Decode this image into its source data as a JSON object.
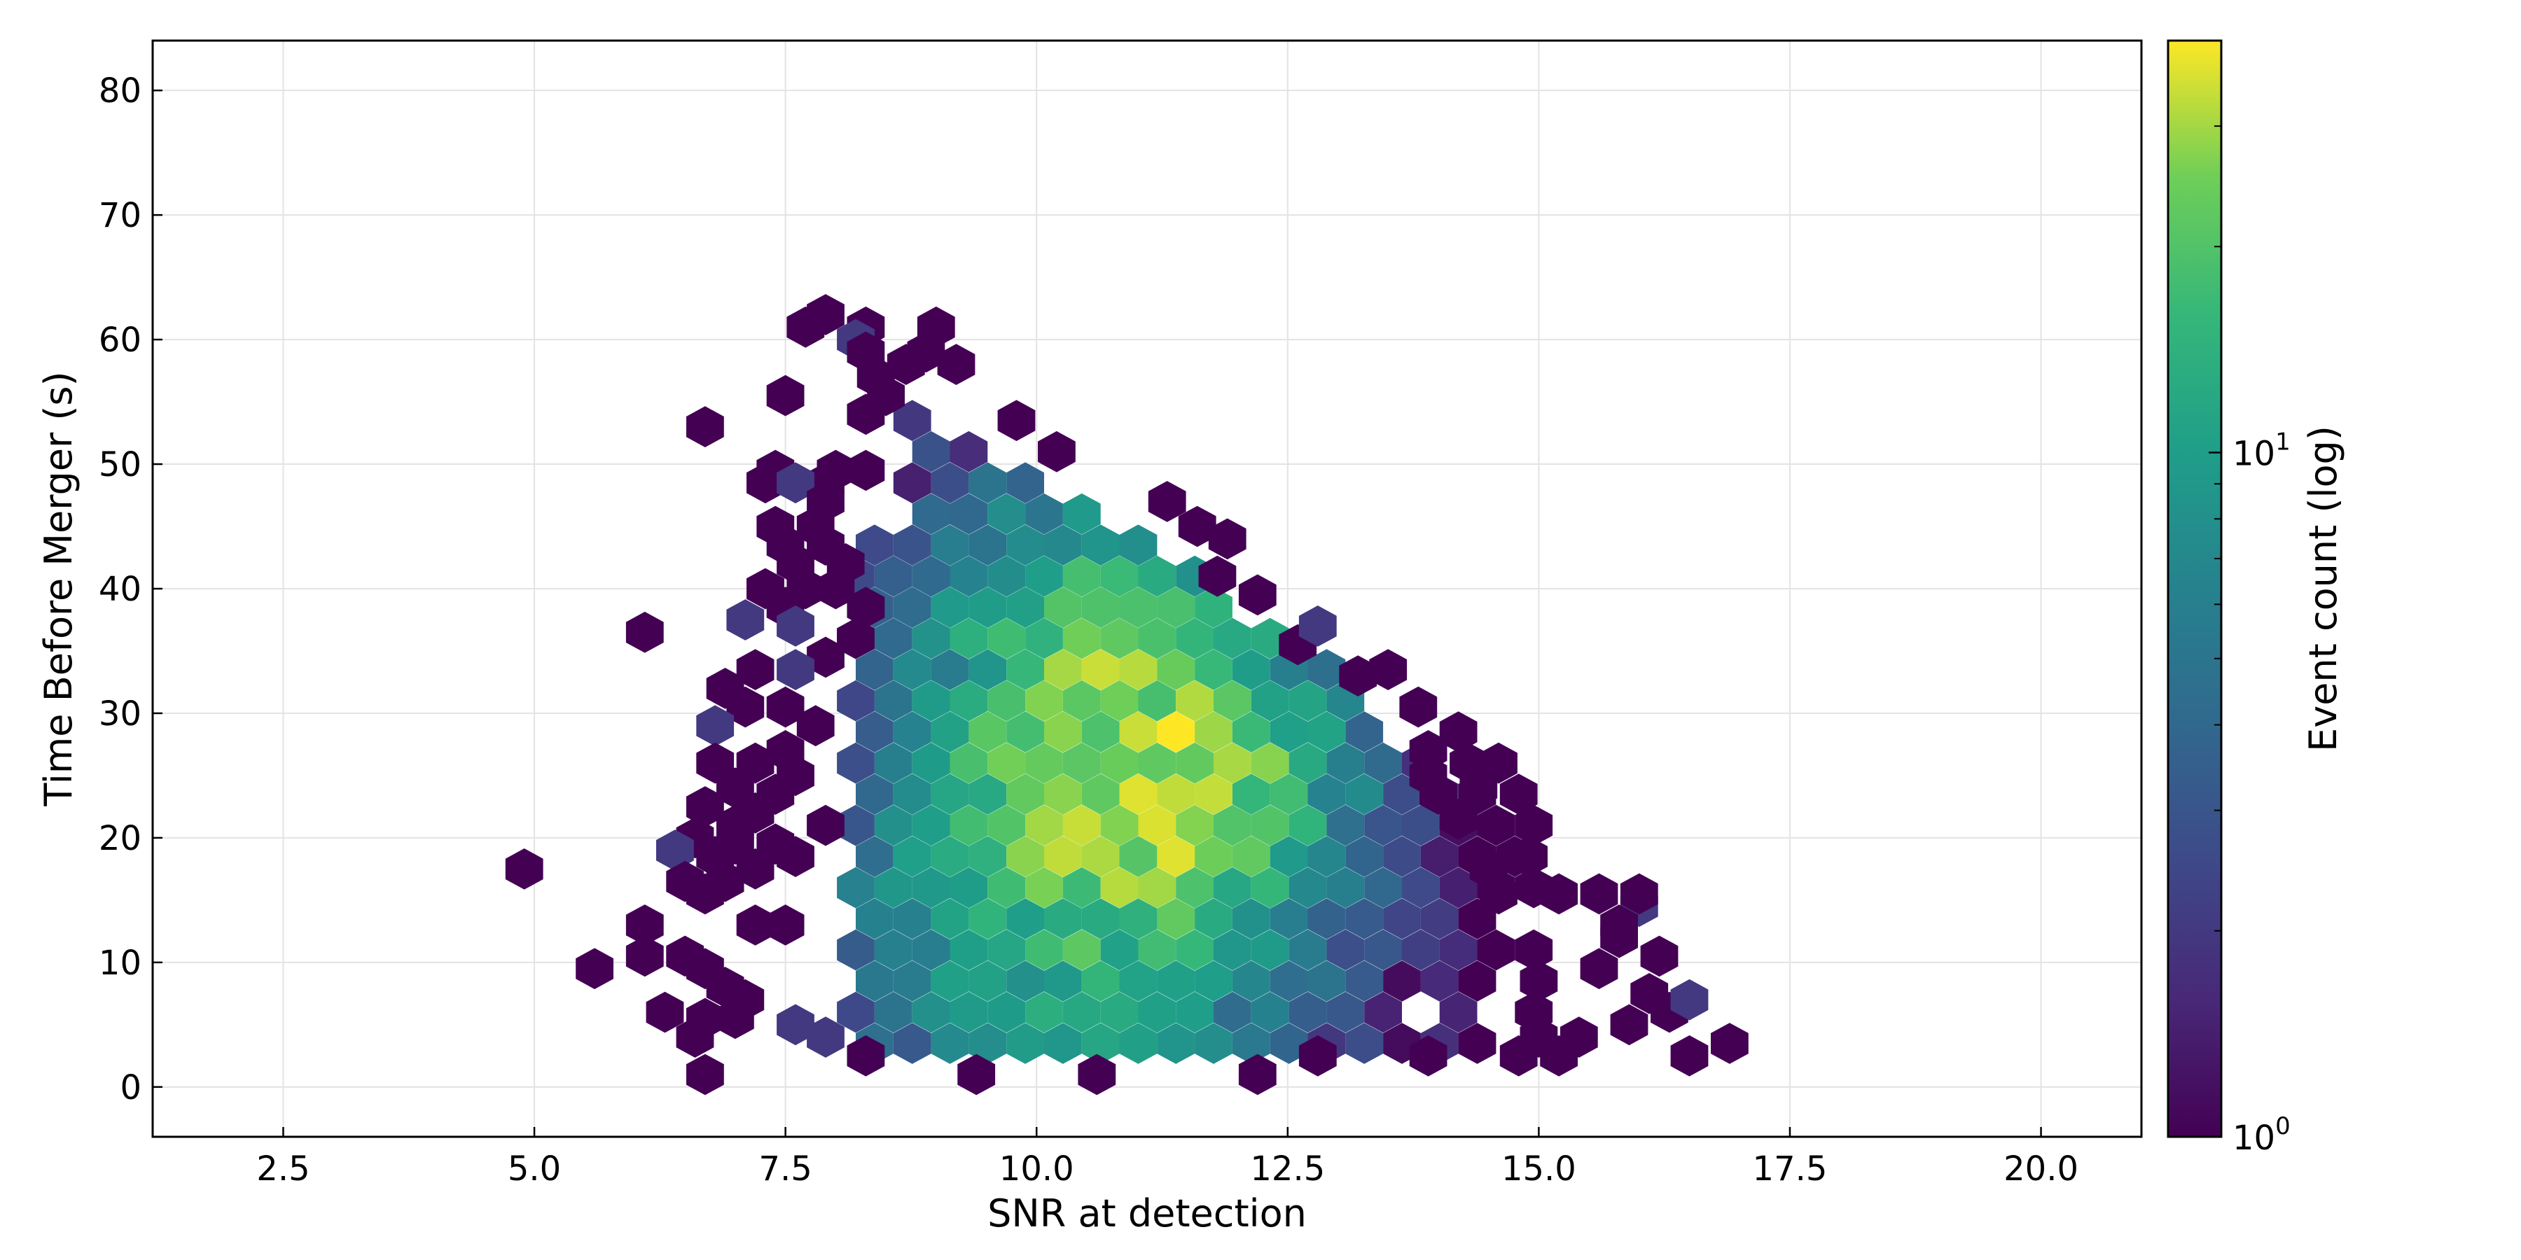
{
  "chart_data": {
    "type": "heatmap",
    "subtype": "hexbin",
    "title": "",
    "xlabel": "SNR at detection",
    "ylabel": "Time Before Merger (s)",
    "xlim": [
      1.2,
      21.0
    ],
    "ylim": [
      -4,
      84
    ],
    "xticks": [
      "2.5",
      "5.0",
      "7.5",
      "10.0",
      "12.5",
      "15.0",
      "17.5",
      "20.0"
    ],
    "yticks": [
      "0",
      "10",
      "20",
      "30",
      "40",
      "50",
      "60",
      "70",
      "80"
    ],
    "grid": true,
    "colorscale": "viridis",
    "log_color": true,
    "colorbar": {
      "label": "Event count (log)",
      "min": 1,
      "max": 40,
      "ticks": [
        {
          "value": 1,
          "base": "10",
          "exp": "0"
        },
        {
          "value": 10,
          "base": "10",
          "exp": "1"
        }
      ]
    },
    "density_model": {
      "description": "approximate event-count field; cells with zero count are blank",
      "peaks": [
        {
          "x": 10.8,
          "y": 29,
          "sx": 1.15,
          "sy": 11,
          "amp": 24
        },
        {
          "x": 11.6,
          "y": 24,
          "sx": 0.8,
          "sy": 5,
          "amp": 14
        },
        {
          "x": 10.3,
          "y": 12,
          "sx": 1.4,
          "sy": 9,
          "amp": 9
        }
      ],
      "upper_edge": {
        "x0": 8.3,
        "y0": 57,
        "x1": 14.1,
        "y1": 29
      }
    },
    "sparse_cells": [
      [
        7.9,
        62,
        1
      ],
      [
        7.7,
        61,
        1
      ],
      [
        8.3,
        61,
        1
      ],
      [
        9.0,
        61,
        1
      ],
      [
        8.2,
        60,
        2
      ],
      [
        8.9,
        59,
        1
      ],
      [
        8.3,
        59,
        1
      ],
      [
        8.7,
        58,
        1
      ],
      [
        9.2,
        58,
        1
      ],
      [
        8.4,
        57,
        1
      ],
      [
        7.5,
        55.5,
        1
      ],
      [
        8.5,
        55.5,
        1
      ],
      [
        6.7,
        53,
        1
      ],
      [
        8.3,
        54,
        1
      ],
      [
        7.4,
        49.5,
        1
      ],
      [
        7.3,
        48.5,
        1
      ],
      [
        8.0,
        49.5,
        1
      ],
      [
        8.3,
        49.5,
        1
      ],
      [
        7.9,
        48.5,
        1
      ],
      [
        7.6,
        48.5,
        2
      ],
      [
        7.9,
        47,
        1
      ],
      [
        7.4,
        45,
        1
      ],
      [
        7.8,
        45,
        1
      ],
      [
        7.5,
        43.5,
        1
      ],
      [
        7.9,
        43.5,
        1
      ],
      [
        7.6,
        42,
        1
      ],
      [
        8.1,
        42,
        1
      ],
      [
        7.3,
        40,
        1
      ],
      [
        7.7,
        40,
        1
      ],
      [
        8.0,
        40,
        1
      ],
      [
        7.5,
        38.5,
        1
      ],
      [
        8.3,
        38.5,
        1
      ],
      [
        7.1,
        37.5,
        2
      ],
      [
        7.6,
        37,
        2
      ],
      [
        6.1,
        36.5,
        1
      ],
      [
        8.2,
        36,
        1
      ],
      [
        7.9,
        34.5,
        1
      ],
      [
        7.2,
        33.5,
        1
      ],
      [
        7.6,
        33.5,
        2
      ],
      [
        6.9,
        32,
        1
      ],
      [
        7.1,
        30.5,
        1
      ],
      [
        7.5,
        30.5,
        1
      ],
      [
        6.8,
        29,
        2
      ],
      [
        7.8,
        29,
        1
      ],
      [
        7.5,
        27,
        1
      ],
      [
        6.8,
        26,
        1
      ],
      [
        7.2,
        26,
        1
      ],
      [
        7.6,
        25,
        1
      ],
      [
        7.0,
        24,
        1
      ],
      [
        7.4,
        23.5,
        1
      ],
      [
        6.7,
        22.5,
        1
      ],
      [
        7.2,
        22,
        1
      ],
      [
        7.0,
        21,
        1
      ],
      [
        7.9,
        21,
        1
      ],
      [
        6.6,
        20,
        1
      ],
      [
        7.0,
        19.5,
        1
      ],
      [
        7.4,
        19.5,
        1
      ],
      [
        6.4,
        19,
        2
      ],
      [
        6.8,
        18.5,
        1
      ],
      [
        7.6,
        18.5,
        1
      ],
      [
        4.9,
        17.5,
        1
      ],
      [
        7.2,
        17.5,
        1
      ],
      [
        6.5,
        16.5,
        1
      ],
      [
        6.9,
        16.5,
        1
      ],
      [
        6.7,
        15.5,
        1
      ],
      [
        6.1,
        13,
        1
      ],
      [
        7.2,
        13,
        1
      ],
      [
        7.5,
        13,
        1
      ],
      [
        6.1,
        10.5,
        1
      ],
      [
        6.5,
        10.5,
        1
      ],
      [
        5.6,
        9.5,
        1
      ],
      [
        6.7,
        9.5,
        1
      ],
      [
        6.9,
        8,
        1
      ],
      [
        7.1,
        7,
        1
      ],
      [
        6.3,
        6,
        1
      ],
      [
        6.7,
        5.5,
        1
      ],
      [
        7.0,
        5.5,
        1
      ],
      [
        6.6,
        4,
        1
      ],
      [
        7.6,
        5,
        2
      ],
      [
        7.9,
        4,
        2
      ],
      [
        6.7,
        1,
        1
      ],
      [
        9.4,
        1,
        1
      ],
      [
        10.6,
        1,
        1
      ],
      [
        12.2,
        1,
        1
      ],
      [
        8.3,
        2.5,
        1
      ],
      [
        12.8,
        2.5,
        1
      ],
      [
        13.9,
        2.5,
        1
      ],
      [
        14.8,
        2.5,
        1
      ],
      [
        15.2,
        2.5,
        1
      ],
      [
        16.5,
        2.5,
        1
      ],
      [
        16.9,
        3.5,
        1
      ],
      [
        15.0,
        4,
        1
      ],
      [
        15.4,
        4,
        1
      ],
      [
        16.3,
        6,
        1
      ],
      [
        16.5,
        7,
        2
      ],
      [
        15.9,
        5,
        1
      ],
      [
        16.1,
        7.5,
        1
      ],
      [
        15.0,
        8.5,
        1
      ],
      [
        15.6,
        9.5,
        1
      ],
      [
        16.2,
        10.5,
        1
      ],
      [
        15.8,
        12,
        1
      ],
      [
        16.0,
        14.5,
        2
      ],
      [
        15.2,
        15.5,
        1
      ],
      [
        15.6,
        15.5,
        1
      ],
      [
        16.0,
        15.5,
        1
      ],
      [
        15.8,
        13,
        1
      ],
      [
        14.6,
        15.5,
        1
      ],
      [
        14.9,
        18.5,
        1
      ],
      [
        14.5,
        17.5,
        1
      ],
      [
        14.2,
        21.5,
        1
      ],
      [
        14.0,
        23.5,
        1
      ],
      [
        14.4,
        24,
        1
      ],
      [
        14.8,
        23.5,
        1
      ],
      [
        13.9,
        25,
        1
      ],
      [
        14.3,
        26,
        1
      ],
      [
        14.6,
        26,
        1
      ],
      [
        13.9,
        27,
        1
      ],
      [
        14.2,
        28.5,
        1
      ],
      [
        13.8,
        30.5,
        1
      ],
      [
        13.2,
        33,
        1
      ],
      [
        13.5,
        33.5,
        1
      ],
      [
        12.6,
        35.5,
        1
      ],
      [
        12.8,
        37,
        2
      ],
      [
        12.2,
        39.5,
        1
      ],
      [
        11.8,
        41,
        1
      ],
      [
        11.9,
        44,
        1
      ],
      [
        11.6,
        45,
        1
      ],
      [
        11.3,
        47,
        1
      ],
      [
        10.2,
        51,
        1
      ],
      [
        9.8,
        53.5,
        1
      ]
    ]
  }
}
